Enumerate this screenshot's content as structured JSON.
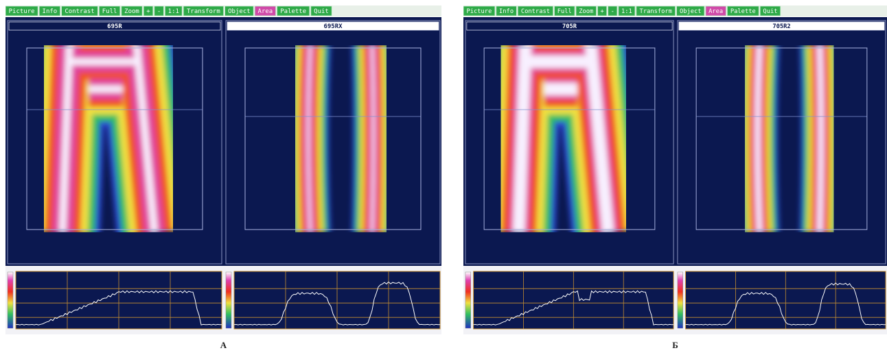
{
  "panels": [
    {
      "caption": "А",
      "toolbar": [
        "Picture",
        "Info",
        "Contrast",
        "Full",
        "Zoom",
        "+",
        "-",
        "1:1",
        "Transform",
        "Object",
        "Area",
        "Palette",
        "Quit"
      ],
      "images": [
        {
          "title": "695R"
        },
        {
          "title": "695RX"
        }
      ]
    },
    {
      "caption": "Б",
      "toolbar": [
        "Picture",
        "Info",
        "Contrast",
        "Full",
        "Zoom",
        "+",
        "-",
        "1:1",
        "Transform",
        "Object",
        "Area",
        "Palette",
        "Quit"
      ],
      "images": [
        {
          "title": "705R"
        },
        {
          "title": "705R2"
        }
      ]
    }
  ]
}
